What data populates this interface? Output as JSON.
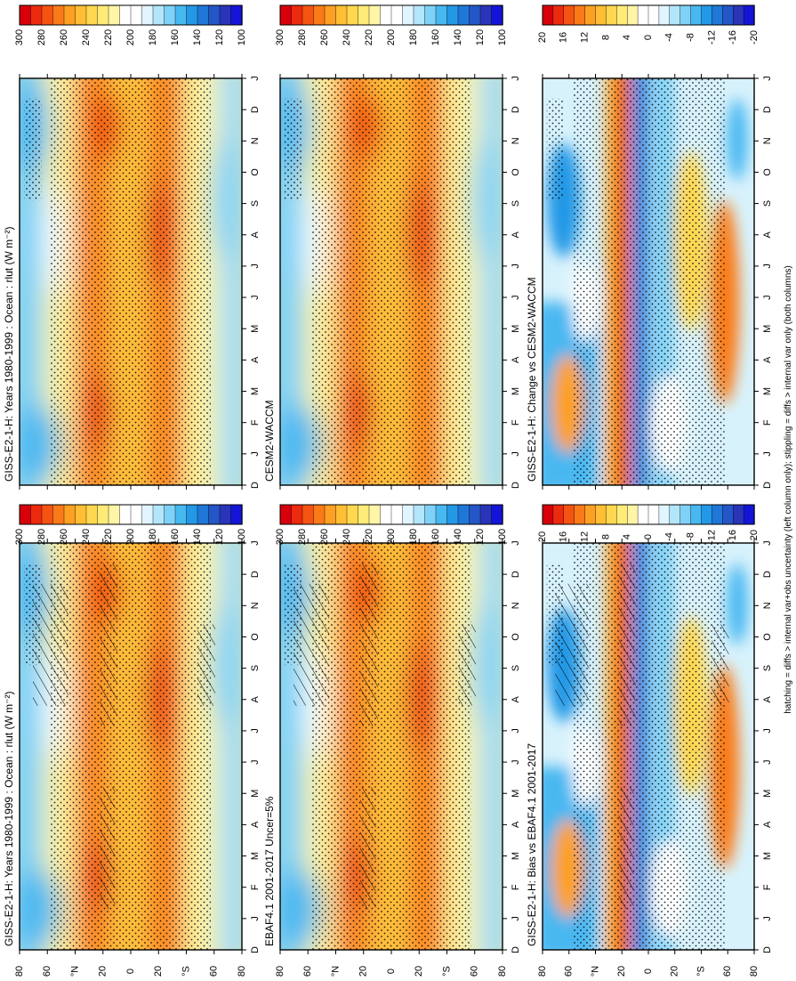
{
  "figure": {
    "footnote": "hatching = diffs > internal var+obs uncertainty (left column only); stippling = diffs > internal var only (both columns)"
  },
  "month_ticks": [
    "D",
    "J",
    "F",
    "M",
    "A",
    "M",
    "J",
    "J",
    "A",
    "S",
    "O",
    "N",
    "D",
    "J"
  ],
  "lat_ticks": [
    "80",
    "60",
    "°N",
    "20",
    "0",
    "20",
    "°S",
    "60",
    "80"
  ],
  "abs_colorbar": {
    "labels": [
      "300",
      "280",
      "260",
      "240",
      "220",
      "200",
      "180",
      "160",
      "140",
      "120",
      "100"
    ],
    "colors": [
      "#d7000b",
      "#ec2a0e",
      "#f55312",
      "#fa7a18",
      "#fda023",
      "#ffbe34",
      "#ffd84f",
      "#ffeb78",
      "#fff5a6",
      "#ffffff",
      "#ffffff",
      "#e0f5ff",
      "#b3e6fb",
      "#7fd2f7",
      "#48b8f1",
      "#2398e6",
      "#1f78d8",
      "#2456c8",
      "#2a34b8",
      "#1414d8"
    ]
  },
  "diff_colorbar": {
    "labels": [
      "20",
      "16",
      "12",
      "8",
      "4",
      "0",
      "-4",
      "-8",
      "-12",
      "-16",
      "-20"
    ],
    "colors": [
      "#d7000b",
      "#ec2a0e",
      "#f55312",
      "#fa7a18",
      "#fda023",
      "#ffbe34",
      "#ffd84f",
      "#ffeb78",
      "#fff5a6",
      "#ffffff",
      "#ffffff",
      "#e0f5ff",
      "#b3e6fb",
      "#7fd2f7",
      "#48b8f1",
      "#2398e6",
      "#1f78d8",
      "#2456c8",
      "#2a34b8",
      "#1414d8"
    ]
  },
  "panels": [
    {
      "title": "GISS-E2-1-H: Years 1980-1999 : Ocean : rlut (W m⁻²)",
      "kind": "abs",
      "hatch": true,
      "stipple": true
    },
    {
      "title": "GISS-E2-1-H: Years 1980-1999 : Ocean : rlut (W m⁻²)",
      "kind": "abs",
      "hatch": false,
      "stipple": true
    },
    {
      "title": "EBAF4.1 2001-2017 Uncer=5%",
      "kind": "abs",
      "hatch": true,
      "stipple": true
    },
    {
      "title": "CESM2-WACCM",
      "kind": "abs",
      "hatch": false,
      "stipple": true
    },
    {
      "title": "GISS-E2-1-H: Bias vs EBAF4.1 2001-2017",
      "kind": "diff",
      "hatch": true,
      "stipple": true
    },
    {
      "title": "GISS-E2-1-H: Change vs CESM2-WACCM",
      "kind": "diff",
      "hatch": false,
      "stipple": true
    }
  ],
  "chart_data": [
    {
      "type": "heatmap",
      "title": "GISS-E2-1-H: Years 1980-1999 : Ocean : rlut (W m⁻²)",
      "xlabel": "",
      "ylabel": "",
      "x": [
        "D",
        "J",
        "F",
        "M",
        "A",
        "M",
        "J",
        "J",
        "A",
        "S",
        "O",
        "N",
        "D",
        "J"
      ],
      "y_ticks": [
        "80",
        "60",
        "°N",
        "20",
        "0",
        "20",
        "°S",
        "60",
        "80"
      ],
      "colorbar": {
        "min": 100,
        "max": 300,
        "labels": [
          "300",
          "280",
          "260",
          "240",
          "220",
          "200",
          "180",
          "160",
          "140",
          "120",
          "100"
        ]
      }
    },
    {
      "type": "heatmap",
      "title": "GISS-E2-1-H: Years 1980-1999 : Ocean : rlut (W m⁻²)",
      "xlabel": "",
      "ylabel": "",
      "x": [
        "D",
        "J",
        "F",
        "M",
        "A",
        "M",
        "J",
        "J",
        "A",
        "S",
        "O",
        "N",
        "D",
        "J"
      ],
      "y_ticks": [
        "80",
        "60",
        "°N",
        "20",
        "0",
        "20",
        "°S",
        "60",
        "80"
      ],
      "colorbar": {
        "min": 100,
        "max": 300,
        "labels": [
          "300",
          "280",
          "260",
          "240",
          "220",
          "200",
          "180",
          "160",
          "140",
          "120",
          "100"
        ]
      }
    },
    {
      "type": "heatmap",
      "title": "EBAF4.1 2001-2017 Uncer=5%",
      "xlabel": "",
      "ylabel": "",
      "x": [
        "D",
        "J",
        "F",
        "M",
        "A",
        "M",
        "J",
        "J",
        "A",
        "S",
        "O",
        "N",
        "D",
        "J"
      ],
      "y_ticks": [
        "80",
        "60",
        "°N",
        "20",
        "0",
        "20",
        "°S",
        "60",
        "80"
      ],
      "colorbar": {
        "min": 100,
        "max": 300,
        "labels": [
          "300",
          "280",
          "260",
          "240",
          "220",
          "200",
          "180",
          "160",
          "140",
          "120",
          "100"
        ]
      }
    },
    {
      "type": "heatmap",
      "title": "CESM2-WACCM",
      "xlabel": "",
      "ylabel": "",
      "x": [
        "D",
        "J",
        "F",
        "M",
        "A",
        "M",
        "J",
        "J",
        "A",
        "S",
        "O",
        "N",
        "D",
        "J"
      ],
      "y_ticks": [
        "80",
        "60",
        "°N",
        "20",
        "0",
        "20",
        "°S",
        "60",
        "80"
      ],
      "colorbar": {
        "min": 100,
        "max": 300,
        "labels": [
          "300",
          "280",
          "260",
          "240",
          "220",
          "200",
          "180",
          "160",
          "140",
          "120",
          "100"
        ]
      }
    },
    {
      "type": "heatmap",
      "title": "GISS-E2-1-H: Bias vs EBAF4.1 2001-2017",
      "xlabel": "",
      "ylabel": "",
      "x": [
        "D",
        "J",
        "F",
        "M",
        "A",
        "M",
        "J",
        "J",
        "A",
        "S",
        "O",
        "N",
        "D",
        "J"
      ],
      "y_ticks": [
        "80",
        "60",
        "°N",
        "20",
        "0",
        "20",
        "°S",
        "60",
        "80"
      ],
      "colorbar": {
        "min": -20,
        "max": 20,
        "labels": [
          "20",
          "16",
          "12",
          "8",
          "4",
          "0",
          "-4",
          "-8",
          "-12",
          "-16",
          "-20"
        ]
      }
    },
    {
      "type": "heatmap",
      "title": "GISS-E2-1-H: Change vs CESM2-WACCM",
      "xlabel": "",
      "ylabel": "",
      "x": [
        "D",
        "J",
        "F",
        "M",
        "A",
        "M",
        "J",
        "J",
        "A",
        "S",
        "O",
        "N",
        "D",
        "J"
      ],
      "y_ticks": [
        "80",
        "60",
        "°N",
        "20",
        "0",
        "20",
        "°S",
        "60",
        "80"
      ],
      "colorbar": {
        "min": -20,
        "max": 20,
        "labels": [
          "20",
          "16",
          "12",
          "8",
          "4",
          "0",
          "-4",
          "-8",
          "-12",
          "-16",
          "-20"
        ]
      }
    }
  ]
}
